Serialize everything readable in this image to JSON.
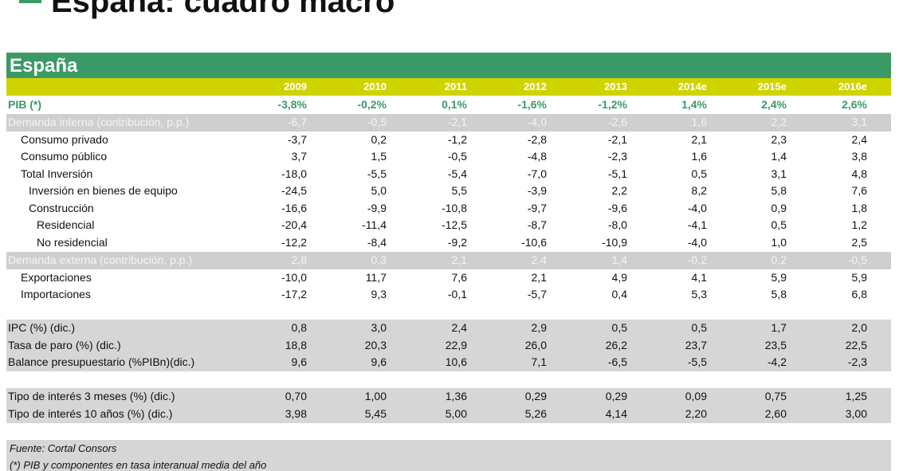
{
  "title": "España: cuadro macro",
  "table_title": "España",
  "colors": {
    "green": "#3a9a66",
    "yellow": "#cfd400",
    "gray": "#d6d6d6"
  },
  "years": [
    "2009",
    "2010",
    "2011",
    "2012",
    "2013",
    "2014e",
    "2015e",
    "2016e"
  ],
  "rows": [
    {
      "label": "PIB (*)",
      "values": [
        "-3,8%",
        "-0,2%",
        "0,1%",
        "-1,6%",
        "-1,2%",
        "1,4%",
        "2,4%",
        "2,6%"
      ]
    },
    {
      "label": "Demanda interna (contribución, p.p.)",
      "values": [
        "-6,7",
        "-0,5",
        "-2,1",
        "-4,0",
        "-2,6",
        "1,6",
        "2,2",
        "3,1"
      ]
    },
    {
      "label": "Consumo privado",
      "values": [
        "-3,7",
        "0,2",
        "-1,2",
        "-2,8",
        "-2,1",
        "2,1",
        "2,3",
        "2,4"
      ]
    },
    {
      "label": "Consumo público",
      "values": [
        "3,7",
        "1,5",
        "-0,5",
        "-4,8",
        "-2,3",
        "1,6",
        "1,4",
        "3,8"
      ]
    },
    {
      "label": "Total Inversión",
      "values": [
        "-18,0",
        "-5,5",
        "-5,4",
        "-7,0",
        "-5,1",
        "0,5",
        "3,1",
        "4,8"
      ]
    },
    {
      "label": "Inversión en bienes de equipo",
      "values": [
        "-24,5",
        "5,0",
        "5,5",
        "-3,9",
        "2,2",
        "8,2",
        "5,8",
        "7,6"
      ]
    },
    {
      "label": "Construcción",
      "values": [
        "-16,6",
        "-9,9",
        "-10,8",
        "-9,7",
        "-9,6",
        "-4,0",
        "0,9",
        "1,8"
      ]
    },
    {
      "label": "Residencial",
      "values": [
        "-20,4",
        "-11,4",
        "-12,5",
        "-8,7",
        "-8,0",
        "-4,1",
        "0,5",
        "1,2"
      ]
    },
    {
      "label": "No residencial",
      "values": [
        "-12,2",
        "-8,4",
        "-9,2",
        "-10,6",
        "-10,9",
        "-4,0",
        "1,0",
        "2,5"
      ]
    },
    {
      "label": "Demanda externa (contribución, p.p.)",
      "values": [
        "2,8",
        "0,3",
        "2,1",
        "2,4",
        "1,4",
        "-0,2",
        "0,2",
        "-0,5"
      ]
    },
    {
      "label": "Exportaciones",
      "values": [
        "-10,0",
        "11,7",
        "7,6",
        "2,1",
        "4,9",
        "4,1",
        "5,9",
        "5,9"
      ]
    },
    {
      "label": "Importaciones",
      "values": [
        "-17,2",
        "9,3",
        "-0,1",
        "-5,7",
        "0,4",
        "5,3",
        "5,8",
        "6,8"
      ]
    },
    {
      "label": "IPC (%)  (dic.)",
      "values": [
        "0,8",
        "3,0",
        "2,4",
        "2,9",
        "0,5",
        "0,5",
        "1,7",
        "2,0"
      ]
    },
    {
      "label": "Tasa de paro (%) (dic.)",
      "values": [
        "18,8",
        "20,3",
        "22,9",
        "26,0",
        "26,2",
        "23,7",
        "23,5",
        "22,5"
      ]
    },
    {
      "label": "Balance presupuestario (%PIBn)(dic.)",
      "values": [
        "9,6",
        "9,6",
        "10,6",
        "7,1",
        "-6,5",
        "-5,5",
        "-4,2",
        "-2,3"
      ]
    },
    {
      "label": "Tipo de interés 3 meses (%) (dic.)",
      "values": [
        "0,70",
        "1,00",
        "1,36",
        "0,29",
        "0,29",
        "0,09",
        "0,75",
        "1,25"
      ]
    },
    {
      "label": "Tipo de interés 10 años (%) (dic.)",
      "values": [
        "3,98",
        "5,45",
        "5,00",
        "5,26",
        "4,14",
        "2,20",
        "2,60",
        "3,00"
      ]
    }
  ],
  "notes": [
    "Fuente: Cortal Consors",
    "(*) PIB y componentes en tasa interanual media del año"
  ]
}
